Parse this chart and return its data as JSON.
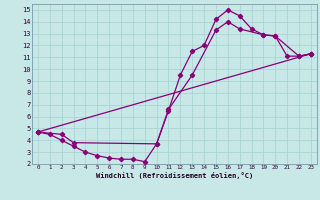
{
  "xlabel": "Windchill (Refroidissement éolien,°C)",
  "bg_color": "#c8e8e8",
  "line_color": "#880077",
  "grid_color": "#aad4d4",
  "xlim": [
    -0.5,
    23.5
  ],
  "ylim": [
    2,
    15.5
  ],
  "xticks": [
    0,
    1,
    2,
    3,
    4,
    5,
    6,
    7,
    8,
    9,
    10,
    11,
    12,
    13,
    14,
    15,
    16,
    17,
    18,
    19,
    20,
    21,
    22,
    23
  ],
  "yticks": [
    2,
    3,
    4,
    5,
    6,
    7,
    8,
    9,
    10,
    11,
    12,
    13,
    14,
    15
  ],
  "line1_x": [
    0,
    1,
    2,
    3,
    4,
    5,
    6,
    7,
    8,
    9,
    10,
    11,
    12,
    13,
    14,
    15,
    16,
    17,
    18,
    19,
    20,
    21,
    22,
    23
  ],
  "line1_y": [
    4.7,
    4.5,
    4.0,
    3.5,
    3.0,
    2.7,
    2.5,
    2.4,
    2.4,
    2.2,
    3.7,
    6.5,
    9.5,
    11.5,
    12.0,
    14.2,
    15.0,
    14.5,
    13.4,
    12.9,
    12.8,
    11.1,
    11.1,
    11.3
  ],
  "line2_x": [
    0,
    2,
    3,
    10,
    11,
    13,
    15,
    16,
    17,
    19,
    20,
    22,
    23
  ],
  "line2_y": [
    4.7,
    4.5,
    3.8,
    3.7,
    6.6,
    9.5,
    13.3,
    14.0,
    13.4,
    12.9,
    12.8,
    11.1,
    11.3
  ],
  "line3_x": [
    0,
    23
  ],
  "line3_y": [
    4.7,
    11.3
  ]
}
